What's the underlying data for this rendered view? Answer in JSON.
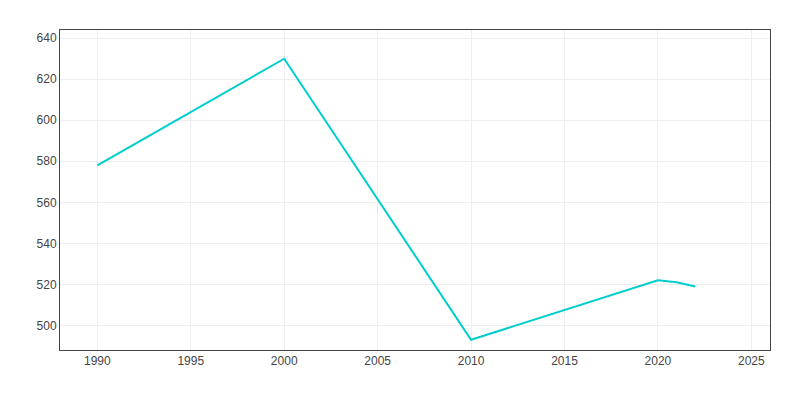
{
  "chart_data": {
    "type": "line",
    "x": [
      1990,
      2000,
      2010,
      2020,
      2021,
      2022
    ],
    "values": [
      578,
      630,
      493,
      522,
      521,
      519
    ],
    "color": "#00CDCD",
    "xlim": [
      1988,
      2026
    ],
    "ylim": [
      488,
      644
    ],
    "xticks": [
      1990,
      1995,
      2000,
      2005,
      2010,
      2015,
      2020,
      2025
    ],
    "yticks": [
      500,
      520,
      540,
      560,
      580,
      600,
      620,
      640
    ],
    "grid": true
  }
}
